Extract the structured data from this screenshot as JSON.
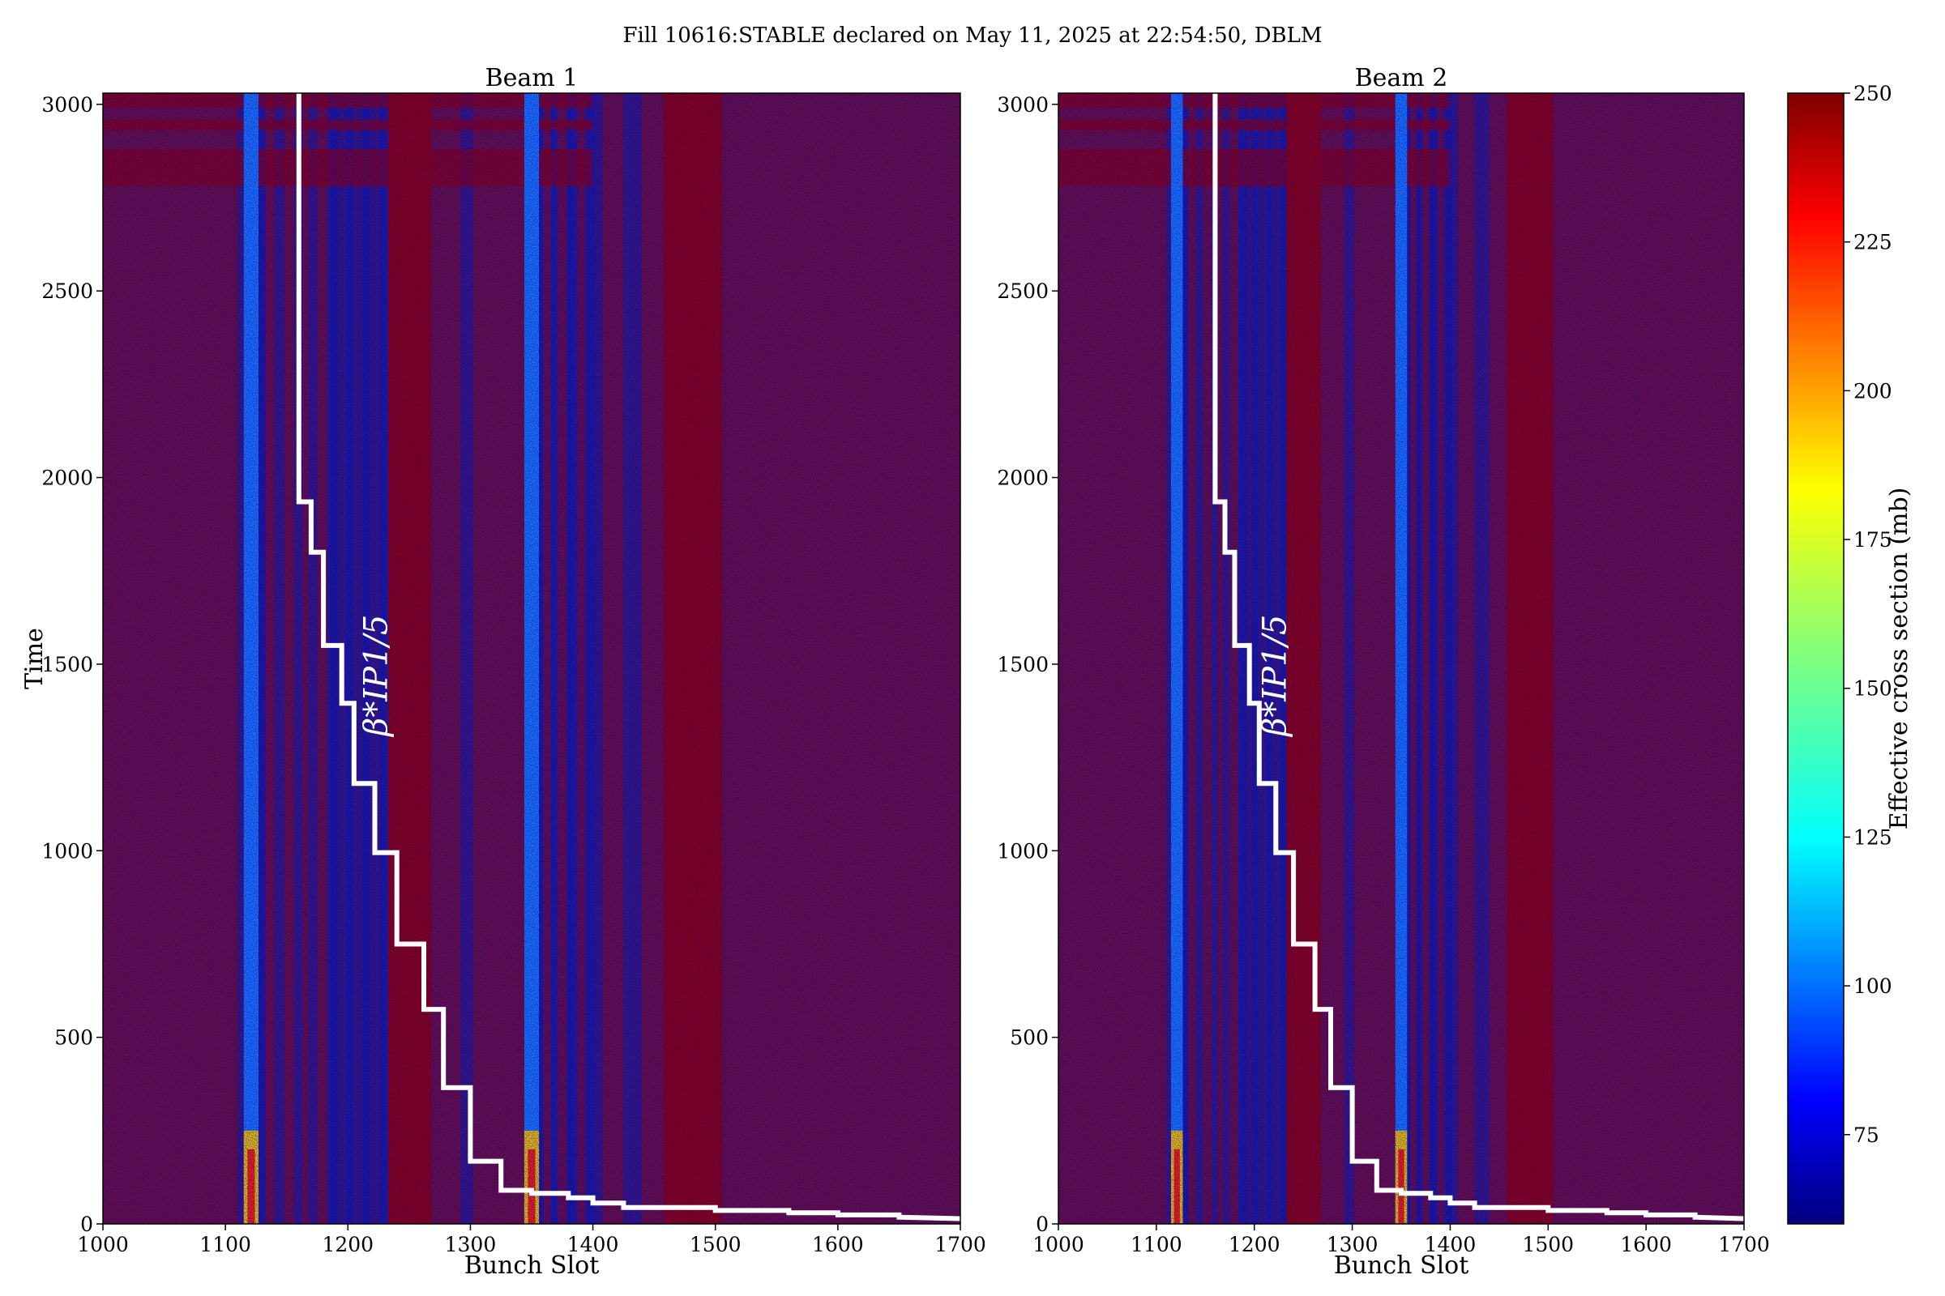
{
  "suptitle": "Fill 10616:STABLE declared on May 11, 2025 at 22:54:50, DBLM",
  "chart_data": [
    {
      "type": "heatmap",
      "title": "Beam 1",
      "xlabel": "Bunch Slot",
      "ylabel": "Time",
      "xlim": [
        1000,
        1700
      ],
      "ylim": [
        0,
        3030
      ],
      "xticks": [
        1000,
        1100,
        1200,
        1300,
        1400,
        1500,
        1600,
        1700
      ],
      "yticks": [
        0,
        500,
        1000,
        1500,
        2000,
        2500,
        3000
      ],
      "annotation": "β*IP1/5",
      "bright_columns": [
        1121,
        1350
      ],
      "step_curve": {
        "x": [
          1160,
          1160,
          1170,
          1170,
          1180,
          1180,
          1195,
          1195,
          1205,
          1205,
          1222,
          1222,
          1240,
          1240,
          1262,
          1262,
          1278,
          1278,
          1300,
          1300,
          1325,
          1325,
          1350,
          1350,
          1380,
          1380,
          1400,
          1400,
          1425,
          1425,
          1500,
          1500,
          1560,
          1560,
          1600,
          1600,
          1650,
          1650,
          1700
        ],
        "y": [
          3030,
          1935,
          1935,
          1800,
          1800,
          1550,
          1550,
          1395,
          1395,
          1180,
          1180,
          995,
          995,
          750,
          750,
          575,
          575,
          365,
          365,
          168,
          168,
          90,
          90,
          82,
          82,
          70,
          70,
          56,
          56,
          44,
          44,
          36,
          36,
          30,
          30,
          24,
          24,
          18,
          14
        ]
      }
    },
    {
      "type": "heatmap",
      "title": "Beam 2",
      "xlabel": "Bunch Slot",
      "ylabel": "",
      "xlim": [
        1000,
        1700
      ],
      "ylim": [
        0,
        3030
      ],
      "xticks": [
        1000,
        1100,
        1200,
        1300,
        1400,
        1500,
        1600,
        1700
      ],
      "yticks": [
        0,
        500,
        1000,
        1500,
        2000,
        2500,
        3000
      ],
      "annotation": "β*IP1/5",
      "bright_columns": [
        1121,
        1350
      ],
      "step_curve": {
        "x": [
          1160,
          1160,
          1170,
          1170,
          1180,
          1180,
          1195,
          1195,
          1205,
          1205,
          1222,
          1222,
          1240,
          1240,
          1262,
          1262,
          1278,
          1278,
          1300,
          1300,
          1325,
          1325,
          1350,
          1350,
          1380,
          1380,
          1400,
          1400,
          1425,
          1425,
          1500,
          1500,
          1560,
          1560,
          1600,
          1600,
          1650,
          1650,
          1700
        ],
        "y": [
          3030,
          1935,
          1935,
          1800,
          1800,
          1550,
          1550,
          1395,
          1395,
          1180,
          1180,
          995,
          995,
          750,
          750,
          575,
          575,
          365,
          365,
          168,
          168,
          90,
          90,
          82,
          82,
          70,
          70,
          56,
          56,
          44,
          44,
          36,
          36,
          30,
          30,
          24,
          24,
          18,
          14
        ]
      }
    }
  ],
  "colorbar": {
    "label": "Effective cross section (mb)",
    "range": [
      60,
      250
    ],
    "ticks": [
      75,
      100,
      125,
      150,
      175,
      200,
      225,
      250
    ],
    "colormap": "jet"
  }
}
